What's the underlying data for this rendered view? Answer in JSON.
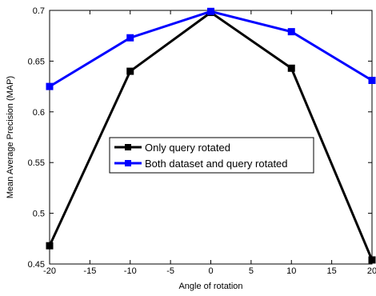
{
  "chart_data": {
    "type": "line",
    "title": "",
    "xlabel": "Angle of rotation",
    "ylabel": "Mean Average Precision (MAP)",
    "xlim": [
      -20,
      20
    ],
    "ylim": [
      0.45,
      0.7
    ],
    "xticks": [
      -20,
      -15,
      -10,
      -5,
      0,
      5,
      10,
      15,
      20
    ],
    "yticks": [
      0.45,
      0.5,
      0.55,
      0.6,
      0.65,
      0.7
    ],
    "grid": false,
    "legend_position": "center",
    "x": [
      -20,
      -10,
      0,
      10,
      20
    ],
    "series": [
      {
        "name": "Only query rotated",
        "color": "#000000",
        "marker": "square",
        "values": [
          0.468,
          0.64,
          0.698,
          0.643,
          0.454
        ]
      },
      {
        "name": "Both dataset and query rotated",
        "color": "#0000ff",
        "marker": "square",
        "values": [
          0.625,
          0.673,
          0.699,
          0.679,
          0.631
        ]
      }
    ]
  }
}
